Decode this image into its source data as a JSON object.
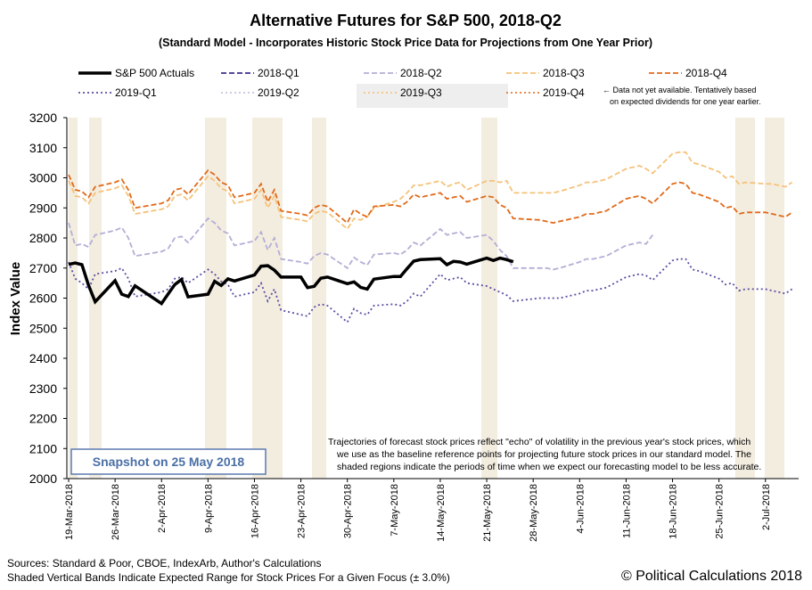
{
  "chart_data": {
    "type": "line",
    "title": "Alternative Futures for S&P 500, 2018-Q2",
    "subtitle": "(Standard Model - Incorporates Historic Stock Price Data for Projections from One Year Prior)",
    "y_label": "Index Value",
    "legend_note": [
      "← Data not yet available. Tentatively based",
      "on expected dividends for one year earlier."
    ],
    "annotation": [
      "Trajectories of forecast stock prices reflect \"echo\" of volatility in  the previous year's stock prices, which",
      "we use as the baseline reference points for projecting future stock prices in our standard model.  The",
      "shaded regions indicate the periods of time when we expect our forecasting model to be less accurate."
    ],
    "snapshot": "Snapshot on 25 May 2018",
    "sources": [
      "Sources: Standard & Poor, CBOE, IndexArb, Author's Calculations",
      "Shaded Vertical Bands Indicate Expected Range for Stock Prices For a Given Focus (± 3.0%)"
    ],
    "credit": "© Political Calculations 2018",
    "grid": false,
    "ylim": [
      2000,
      3200
    ],
    "yticks": [
      2000,
      2100,
      2200,
      2300,
      2400,
      2500,
      2600,
      2700,
      2800,
      2900,
      3000,
      3100,
      3200
    ],
    "xlim": [
      "2018-03-19",
      "2018-07-07"
    ],
    "xticks": [
      {
        "value": "2018-03-19",
        "label": "19-Mar-2018"
      },
      {
        "value": "2018-03-26",
        "label": "26-Mar-2018"
      },
      {
        "value": "2018-04-02",
        "label": "2-Apr-2018"
      },
      {
        "value": "2018-04-09",
        "label": "9-Apr-2018"
      },
      {
        "value": "2018-04-16",
        "label": "16-Apr-2018"
      },
      {
        "value": "2018-04-23",
        "label": "23-Apr-2018"
      },
      {
        "value": "2018-04-30",
        "label": "30-Apr-2018"
      },
      {
        "value": "2018-05-07",
        "label": "7-May-2018"
      },
      {
        "value": "2018-05-14",
        "label": "14-May-2018"
      },
      {
        "value": "2018-05-21",
        "label": "21-May-2018"
      },
      {
        "value": "2018-05-28",
        "label": "28-May-2018"
      },
      {
        "value": "2018-06-04",
        "label": "4-Jun-2018"
      },
      {
        "value": "2018-06-11",
        "label": "11-Jun-2018"
      },
      {
        "value": "2018-06-18",
        "label": "18-Jun-2018"
      },
      {
        "value": "2018-06-25",
        "label": "25-Jun-2018"
      },
      {
        "value": "2018-07-02",
        "label": "2-Jul-2018"
      }
    ],
    "x": [
      "2018-03-19",
      "2018-03-20",
      "2018-03-21",
      "2018-03-22",
      "2018-03-23",
      "2018-03-26",
      "2018-03-27",
      "2018-03-28",
      "2018-03-29",
      "2018-04-02",
      "2018-04-03",
      "2018-04-04",
      "2018-04-05",
      "2018-04-06",
      "2018-04-09",
      "2018-04-10",
      "2018-04-11",
      "2018-04-12",
      "2018-04-13",
      "2018-04-16",
      "2018-04-17",
      "2018-04-18",
      "2018-04-19",
      "2018-04-20",
      "2018-04-23",
      "2018-04-24",
      "2018-04-25",
      "2018-04-26",
      "2018-04-27",
      "2018-04-30",
      "2018-05-01",
      "2018-05-02",
      "2018-05-03",
      "2018-05-04",
      "2018-05-07",
      "2018-05-08",
      "2018-05-09",
      "2018-05-10",
      "2018-05-11",
      "2018-05-14",
      "2018-05-15",
      "2018-05-16",
      "2018-05-17",
      "2018-05-18",
      "2018-05-21",
      "2018-05-22",
      "2018-05-23",
      "2018-05-24",
      "2018-05-25",
      "2018-05-29",
      "2018-05-30",
      "2018-05-31",
      "2018-06-01",
      "2018-06-04",
      "2018-06-05",
      "2018-06-06",
      "2018-06-07",
      "2018-06-08",
      "2018-06-11",
      "2018-06-12",
      "2018-06-13",
      "2018-06-14",
      "2018-06-15",
      "2018-06-18",
      "2018-06-19",
      "2018-06-20",
      "2018-06-21",
      "2018-06-22",
      "2018-06-25",
      "2018-06-26",
      "2018-06-27",
      "2018-06-28",
      "2018-06-29",
      "2018-07-02",
      "2018-07-03",
      "2018-07-05",
      "2018-07-06"
    ],
    "series": [
      {
        "name": "S&P 500 Actuals",
        "color": "#000000",
        "dash": "solid",
        "values": [
          2712,
          2717,
          2711,
          2643,
          2588,
          2658,
          2613,
          2605,
          2641,
          2582,
          2614,
          2645,
          2662,
          2604,
          2613,
          2656,
          2642,
          2664,
          2657,
          2677,
          2706,
          2708,
          2693,
          2670,
          2670,
          2635,
          2639,
          2666,
          2670,
          2648,
          2654,
          2636,
          2630,
          2663,
          2672,
          2672,
          2698,
          2723,
          2728,
          2731,
          2711,
          2722,
          2720,
          2713,
          2733,
          2725,
          2733,
          2728,
          2721,
          null,
          null,
          null,
          null,
          null,
          null,
          null,
          null,
          null,
          null,
          null,
          null,
          null,
          null,
          null,
          null,
          null,
          null,
          null,
          null,
          null,
          null,
          null,
          null,
          null,
          null,
          null,
          null
        ]
      },
      {
        "name": "2018-Q1",
        "color": "#3d2e8f",
        "dash": "dashed",
        "values": [
          null,
          null,
          null,
          null,
          null,
          null,
          null,
          null,
          null,
          null,
          null,
          null,
          null,
          null,
          null,
          null,
          null,
          null,
          null,
          null,
          null,
          null,
          null,
          null,
          null,
          null,
          null,
          null,
          null,
          null,
          null,
          null,
          null,
          null,
          null,
          null,
          null,
          null,
          null,
          null,
          null,
          null,
          null,
          null,
          null,
          null,
          null,
          null,
          null,
          null,
          null,
          null,
          null,
          null,
          null,
          null,
          null,
          null,
          null,
          null,
          null,
          null,
          null,
          null,
          null,
          null,
          null,
          null,
          null,
          null,
          null,
          null,
          null,
          null,
          null,
          null,
          null
        ]
      },
      {
        "name": "2018-Q2",
        "color": "#b3aed6",
        "dash": "dashed",
        "values": [
          2850,
          2775,
          2780,
          2770,
          2810,
          2825,
          2835,
          2800,
          2740,
          2755,
          2765,
          2800,
          2805,
          2785,
          2865,
          2850,
          2825,
          2815,
          2775,
          2790,
          2820,
          2760,
          2800,
          2730,
          2720,
          2715,
          2740,
          2750,
          2745,
          2700,
          2735,
          2720,
          2710,
          2745,
          2750,
          2745,
          2760,
          2785,
          2775,
          2830,
          2810,
          2815,
          2820,
          2800,
          2810,
          2790,
          2760,
          2740,
          2700,
          2700,
          2700,
          2695,
          2700,
          2720,
          2730,
          2730,
          2735,
          2740,
          2775,
          2780,
          2785,
          2780,
          2810,
          null,
          null,
          null,
          null,
          null,
          null,
          null,
          null,
          null,
          null,
          null,
          null,
          null,
          null
        ]
      },
      {
        "name": "2018-Q3",
        "color": "#f5c27a",
        "dash": "dashed",
        "values": [
          2990,
          2940,
          2935,
          2915,
          2950,
          2965,
          2975,
          2940,
          2880,
          2895,
          2905,
          2940,
          2945,
          2925,
          3005,
          2990,
          2965,
          2955,
          2915,
          2930,
          2960,
          2900,
          2940,
          2870,
          2860,
          2855,
          2880,
          2890,
          2885,
          2830,
          2865,
          2860,
          2870,
          2900,
          2920,
          2930,
          2950,
          2975,
          2975,
          2990,
          2970,
          2980,
          2985,
          2960,
          2990,
          2990,
          2985,
          2990,
          2950,
          2950,
          2950,
          2950,
          2955,
          2975,
          2985,
          2985,
          2990,
          2995,
          3030,
          3035,
          3040,
          3030,
          3015,
          3080,
          3085,
          3085,
          3050,
          3045,
          3020,
          3000,
          3005,
          2980,
          2985,
          2980,
          2980,
          2970,
          2985
        ]
      },
      {
        "name": "2018-Q4",
        "color": "#e06a1a",
        "dash": "dashed",
        "values": [
          3010,
          2960,
          2955,
          2935,
          2970,
          2985,
          2995,
          2960,
          2900,
          2915,
          2925,
          2960,
          2965,
          2945,
          3025,
          3010,
          2985,
          2975,
          2935,
          2950,
          2980,
          2920,
          2960,
          2890,
          2880,
          2875,
          2900,
          2910,
          2905,
          2850,
          2895,
          2880,
          2870,
          2905,
          2910,
          2905,
          2920,
          2945,
          2935,
          2950,
          2930,
          2935,
          2940,
          2920,
          2940,
          2935,
          2910,
          2900,
          2865,
          2860,
          2855,
          2850,
          2855,
          2870,
          2880,
          2880,
          2885,
          2890,
          2930,
          2935,
          2940,
          2930,
          2915,
          2980,
          2985,
          2980,
          2950,
          2945,
          2920,
          2900,
          2905,
          2880,
          2885,
          2885,
          2880,
          2870,
          2885
        ]
      },
      {
        "name": "2019-Q1",
        "color": "#5a4ea3",
        "dash": "dotted",
        "values": [
          2720,
          2665,
          2650,
          2630,
          2680,
          2690,
          2700,
          2665,
          2605,
          2620,
          2630,
          2665,
          2670,
          2650,
          2695,
          2680,
          2655,
          2645,
          2605,
          2620,
          2650,
          2590,
          2630,
          2560,
          2545,
          2540,
          2570,
          2580,
          2575,
          2520,
          2565,
          2550,
          2545,
          2575,
          2580,
          2575,
          2590,
          2615,
          2605,
          2680,
          2660,
          2665,
          2670,
          2650,
          2640,
          2630,
          2620,
          2610,
          2590,
          2600,
          2600,
          2600,
          2600,
          2615,
          2625,
          2625,
          2630,
          2635,
          2670,
          2675,
          2680,
          2675,
          2660,
          2725,
          2730,
          2730,
          2695,
          2690,
          2665,
          2645,
          2650,
          2625,
          2630,
          2630,
          2625,
          2615,
          2630
        ]
      },
      {
        "name": "2019-Q2",
        "color": "#c8c3e0",
        "dash": "dotted",
        "values": [
          null,
          null,
          null,
          null,
          null,
          null,
          null,
          null,
          null,
          null,
          null,
          null,
          null,
          null,
          null,
          null,
          null,
          null,
          null,
          null,
          null,
          null,
          null,
          null,
          null,
          null,
          null,
          null,
          null,
          null,
          null,
          null,
          null,
          null,
          null,
          null,
          null,
          null,
          null,
          null,
          null,
          null,
          null,
          null,
          null,
          null,
          null,
          null,
          null,
          null,
          null,
          null,
          null,
          null,
          null,
          null,
          null,
          null,
          null,
          null,
          null,
          null,
          null,
          null,
          null,
          null,
          null,
          null,
          null,
          null,
          null,
          null,
          null,
          null,
          null,
          null,
          null
        ]
      },
      {
        "name": "2019-Q3",
        "color": "#f6c27e",
        "dash": "dotted",
        "values": [
          null,
          null,
          null,
          null,
          null,
          null,
          null,
          null,
          null,
          null,
          null,
          null,
          null,
          null,
          null,
          null,
          null,
          null,
          null,
          null,
          null,
          null,
          null,
          null,
          null,
          null,
          null,
          null,
          null,
          null,
          null,
          null,
          null,
          null,
          null,
          null,
          null,
          null,
          null,
          null,
          null,
          null,
          null,
          null,
          null,
          null,
          null,
          null,
          null,
          null,
          null,
          null,
          null,
          null,
          null,
          null,
          null,
          null,
          null,
          null,
          null,
          null,
          null,
          null,
          null,
          null,
          null,
          null,
          null,
          null,
          null,
          null,
          null,
          null,
          null,
          null,
          null
        ]
      },
      {
        "name": "2019-Q4",
        "color": "#e57a30",
        "dash": "dotted",
        "values": [
          null,
          null,
          null,
          null,
          null,
          null,
          null,
          null,
          null,
          null,
          null,
          null,
          null,
          null,
          null,
          null,
          null,
          null,
          null,
          null,
          null,
          null,
          null,
          null,
          null,
          null,
          null,
          null,
          null,
          null,
          null,
          null,
          null,
          null,
          null,
          null,
          null,
          null,
          null,
          null,
          null,
          null,
          null,
          null,
          null,
          null,
          null,
          null,
          null,
          null,
          null,
          null,
          null,
          null,
          null,
          null,
          null,
          null,
          null,
          null,
          null,
          null,
          null,
          null,
          null,
          null,
          null,
          null,
          null,
          null,
          null,
          null,
          null,
          null,
          null,
          null,
          null
        ]
      }
    ]
  }
}
